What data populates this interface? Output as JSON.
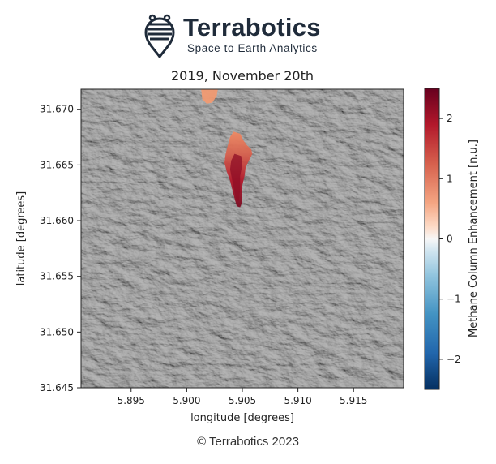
{
  "logo": {
    "name": "Terrabotics",
    "tagline": "Space to Earth Analytics",
    "mark_icon": "satellite-pin-icon"
  },
  "copyright": "© Terrabotics 2023",
  "colors": {
    "brand": "#1f2b3a",
    "colormap_high": "#67001f",
    "colormap_mid": "#f7f7f7",
    "colormap_low": "#053061",
    "background_gray": "#8a8a8a"
  },
  "chart_data": {
    "type": "heatmap",
    "title": "2019, November 20th",
    "xlabel": "longitude [degrees]",
    "ylabel": "latitude [degrees]",
    "xlim": [
      5.8905,
      5.9195
    ],
    "ylim": [
      31.645,
      31.6718
    ],
    "xticks": [
      5.895,
      5.9,
      5.905,
      5.91,
      5.915
    ],
    "xtick_labels": [
      "5.895",
      "5.900",
      "5.905",
      "5.910",
      "5.915"
    ],
    "yticks": [
      31.645,
      31.65,
      31.655,
      31.66,
      31.665,
      31.67
    ],
    "ytick_labels": [
      "31.645",
      "31.650",
      "31.655",
      "31.660",
      "31.665",
      "31.670"
    ],
    "grid": false,
    "colorbar": {
      "label": "Methane Column Enhancement [n.u.]",
      "range": [
        -2.5,
        2.5
      ],
      "ticks": [
        2,
        1,
        0,
        -1,
        -2
      ],
      "tick_labels": [
        "2",
        "1",
        "0",
        "−1",
        "−2"
      ],
      "colormap": "RdBu_r"
    },
    "plumes": [
      {
        "name": "main-plume",
        "max_enhancement": 2.4,
        "outline": [
          [
            5.9042,
            31.668
          ],
          [
            5.9048,
            31.6678
          ],
          [
            5.9051,
            31.6672
          ],
          [
            5.9054,
            31.6668
          ],
          [
            5.9058,
            31.6664
          ],
          [
            5.9059,
            31.666
          ],
          [
            5.9056,
            31.6654
          ],
          [
            5.9053,
            31.6648
          ],
          [
            5.9052,
            31.664
          ],
          [
            5.905,
            31.6632
          ],
          [
            5.905,
            31.6624
          ],
          [
            5.905,
            31.6617
          ],
          [
            5.9048,
            31.6612
          ],
          [
            5.9045,
            31.6613
          ],
          [
            5.9043,
            31.662
          ],
          [
            5.9041,
            31.6628
          ],
          [
            5.9039,
            31.6636
          ],
          [
            5.9036,
            31.6644
          ],
          [
            5.9034,
            31.6652
          ],
          [
            5.9035,
            31.666
          ],
          [
            5.9037,
            31.6668
          ],
          [
            5.9039,
            31.6675
          ]
        ],
        "core": [
          [
            5.9043,
            31.666
          ],
          [
            5.9049,
            31.6658
          ],
          [
            5.905,
            31.665
          ],
          [
            5.9048,
            31.664
          ],
          [
            5.9048,
            31.6628
          ],
          [
            5.9047,
            31.6618
          ],
          [
            5.9045,
            31.6617
          ],
          [
            5.9043,
            31.6626
          ],
          [
            5.9041,
            31.6636
          ],
          [
            5.9039,
            31.6646
          ],
          [
            5.904,
            31.6654
          ]
        ]
      },
      {
        "name": "top-edge-plume",
        "max_enhancement": 0.9,
        "outline": [
          [
            5.9013,
            31.6718
          ],
          [
            5.9028,
            31.6718
          ],
          [
            5.9027,
            31.6712
          ],
          [
            5.9023,
            31.6706
          ],
          [
            5.9018,
            31.6705
          ],
          [
            5.9014,
            31.6709
          ]
        ]
      }
    ]
  }
}
